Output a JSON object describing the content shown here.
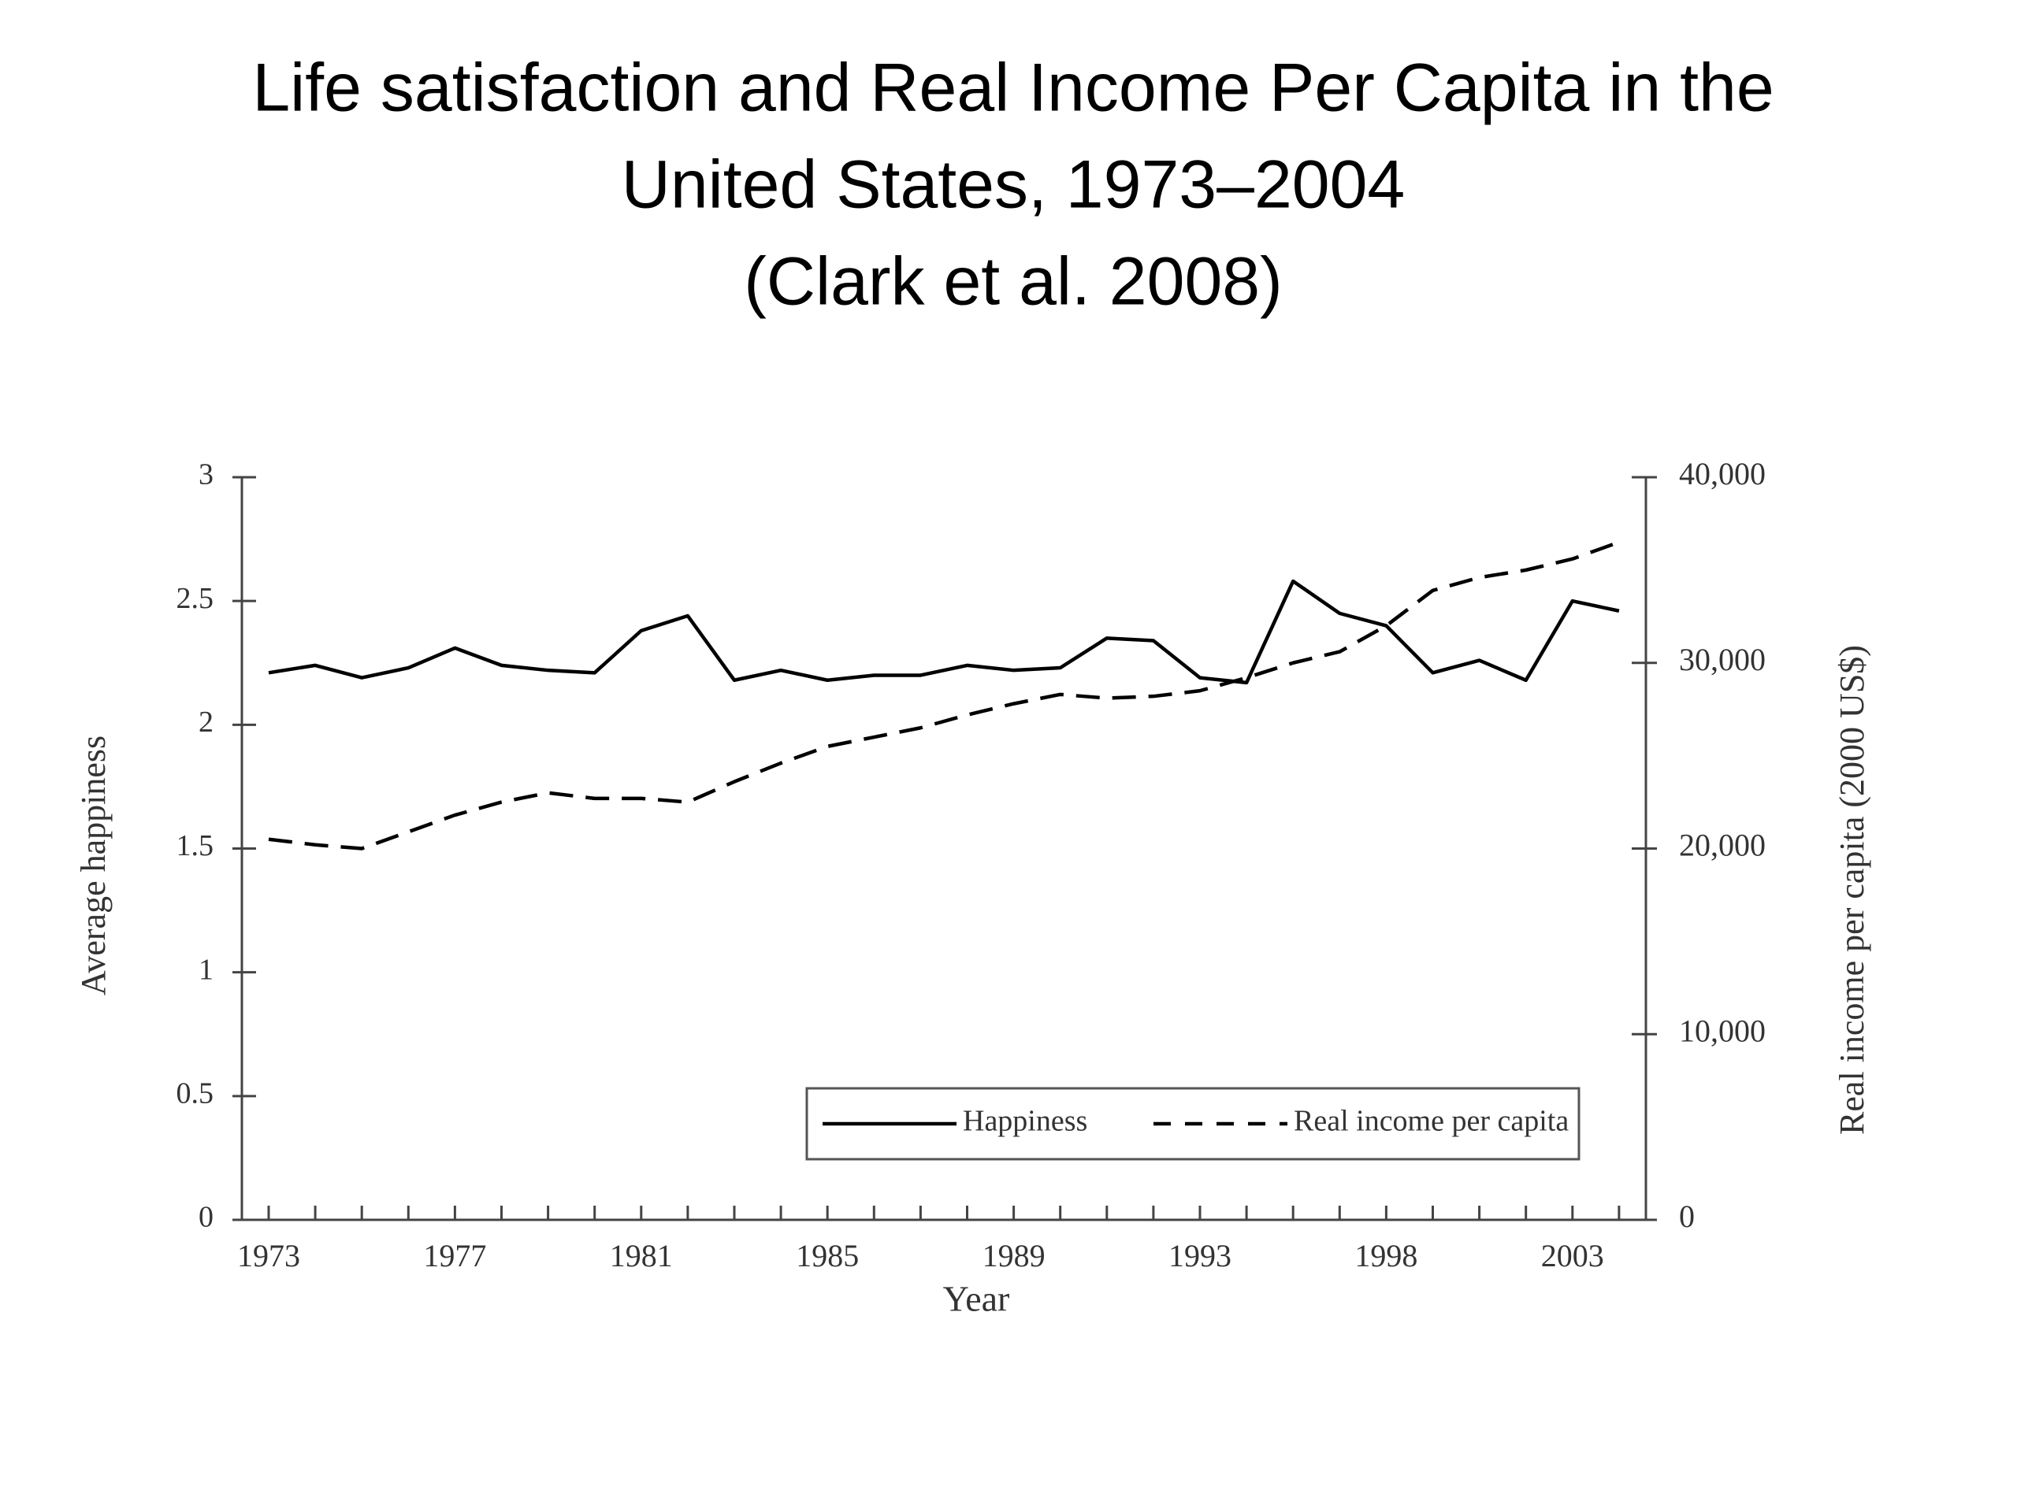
{
  "chart_data": {
    "type": "line",
    "title": [
      "Life satisfaction and Real Income Per Capita in the",
      "United States, 1973–2004",
      "(Clark et al. 2008)"
    ],
    "x_label": "Year",
    "y_label": "Average happiness",
    "y2_label": "Real income per capita (2000 US$)",
    "categories": [
      "1973",
      null,
      null,
      null,
      "1977",
      null,
      null,
      null,
      "1981",
      null,
      null,
      null,
      "1985",
      null,
      null,
      null,
      "1989",
      null,
      null,
      null,
      "1993",
      null,
      null,
      null,
      "1998",
      null,
      null,
      null,
      "2003",
      null
    ],
    "series": [
      {
        "name": "Happiness",
        "color": "#000000",
        "dash": false,
        "values": [
          2.21,
          2.24,
          2.19,
          2.23,
          2.31,
          2.24,
          2.22,
          2.21,
          2.38,
          2.44,
          2.18,
          2.22,
          2.18,
          2.2,
          2.2,
          2.24,
          2.22,
          2.23,
          2.35,
          2.34,
          2.19,
          2.17,
          2.58,
          2.45,
          2.4,
          2.21,
          2.26,
          2.18,
          2.5,
          2.46
        ]
      },
      {
        "name": "Real income per capita",
        "color": "#000000",
        "dash": true,
        "axis": "y2",
        "values": [
          20500,
          20200,
          20000,
          20900,
          21800,
          22500,
          23000,
          22700,
          22700,
          22500,
          23600,
          24600,
          25500,
          26000,
          26500,
          27200,
          27800,
          28300,
          28100,
          28200,
          28500,
          29200,
          30000,
          30600,
          32000,
          33900,
          34600,
          35000,
          35600,
          36500
        ]
      }
    ],
    "ylim": [
      0,
      3
    ],
    "yticks": [
      0,
      0.5,
      1,
      1.5,
      2,
      2.5,
      3
    ],
    "y2lim": [
      0,
      40000
    ],
    "y2ticks": [
      0,
      {
        "value": 10000,
        "label": "10,000"
      },
      {
        "value": 20000,
        "label": "20,000"
      },
      {
        "value": 30000,
        "label": "30,000"
      },
      {
        "value": 40000,
        "label": "40,000"
      }
    ],
    "legend": "lower right"
  }
}
